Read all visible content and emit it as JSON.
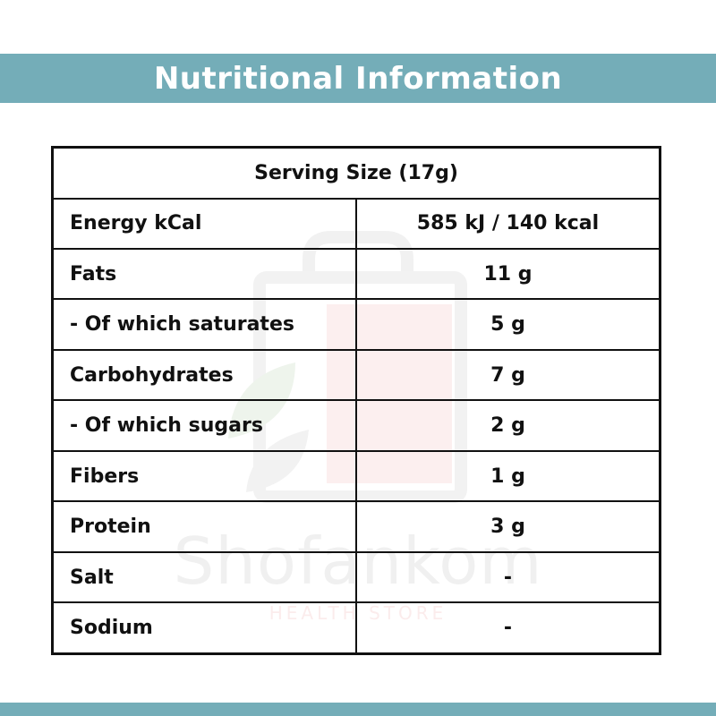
{
  "banner": {
    "title": "Nutritional Information"
  },
  "table": {
    "header": "Serving Size (17g)",
    "rows": [
      {
        "label": "Energy kCal",
        "value": "585 kJ / 140 kcal"
      },
      {
        "label": "Fats",
        "value": "11 g"
      },
      {
        "label": "- Of which saturates",
        "value": "5 g"
      },
      {
        "label": "Carbohydrates",
        "value": "7 g"
      },
      {
        "label": "- Of which sugars",
        "value": "2 g"
      },
      {
        "label": "Fibers",
        "value": "1 g"
      },
      {
        "label": "Protein",
        "value": "3 g"
      },
      {
        "label": "Salt",
        "value": "-"
      },
      {
        "label": "Sodium",
        "value": "-"
      }
    ]
  },
  "watermark": {
    "brand": "Shofankom",
    "subtitle": "HEALTH STORE"
  },
  "colors": {
    "banner": "#74adb8",
    "header_text": "#e11a1a",
    "border": "#111111"
  }
}
